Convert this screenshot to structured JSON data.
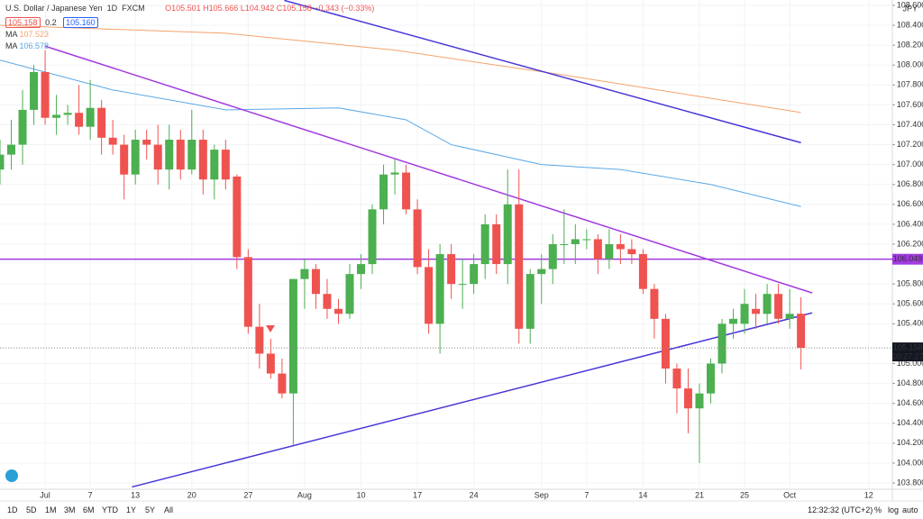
{
  "ui": {
    "symbol": "U.S. Dollar / Japanese Yen",
    "interval": "1D",
    "source": "FXCM",
    "ohlc_text": "O105.501 H105.666 L104.942 C105.158 −0.343 (−0.33%)",
    "bid": "105.158",
    "spread": "0.2",
    "ask": "105.160",
    "currency": "JPY",
    "countdown": "10:27:27",
    "ranges": [
      "1D",
      "5D",
      "1M",
      "3M",
      "6M",
      "YTD",
      "1Y",
      "5Y",
      "All"
    ],
    "clock": "12:32:32 (UTC+2)",
    "scale_buttons": [
      "%",
      "log",
      "auto"
    ]
  },
  "chart_data": {
    "type": "candlestick",
    "up_color": "#4caf50",
    "down_color": "#ef5350",
    "grid": true,
    "xlim": [
      0,
      79.1
    ],
    "ylim": [
      103.737,
      108.654
    ],
    "xticks": [
      {
        "value": 4,
        "label": "Jul"
      },
      {
        "value": 8,
        "label": "7"
      },
      {
        "value": 12,
        "label": "13"
      },
      {
        "value": 17,
        "label": "20"
      },
      {
        "value": 22,
        "label": "27"
      },
      {
        "value": 27,
        "label": "Aug"
      },
      {
        "value": 32,
        "label": "10"
      },
      {
        "value": 37,
        "label": "17"
      },
      {
        "value": 42,
        "label": "24"
      },
      {
        "value": 48,
        "label": "Sep"
      },
      {
        "value": 52,
        "label": "7"
      },
      {
        "value": 57,
        "label": "14"
      },
      {
        "value": 62,
        "label": "21"
      },
      {
        "value": 66,
        "label": "25"
      },
      {
        "value": 70,
        "label": "Oct"
      },
      {
        "value": 77,
        "label": "12"
      }
    ],
    "yticks": [
      {
        "value": 103.8,
        "label": "103.800"
      },
      {
        "value": 104.0,
        "label": "104.000"
      },
      {
        "value": 104.2,
        "label": "104.200"
      },
      {
        "value": 104.4,
        "label": "104.400"
      },
      {
        "value": 104.6,
        "label": "104.600"
      },
      {
        "value": 104.8,
        "label": "104.800"
      },
      {
        "value": 105.0,
        "label": "105.000"
      },
      {
        "value": 105.4,
        "label": "105.400"
      },
      {
        "value": 105.6,
        "label": "105.600"
      },
      {
        "value": 105.8,
        "label": "105.800"
      },
      {
        "value": 106.2,
        "label": "106.200"
      },
      {
        "value": 106.4,
        "label": "106.400"
      },
      {
        "value": 106.6,
        "label": "106.600"
      },
      {
        "value": 106.8,
        "label": "106.800"
      },
      {
        "value": 107.0,
        "label": "107.000"
      },
      {
        "value": 107.2,
        "label": "107.200"
      },
      {
        "value": 107.4,
        "label": "107.400"
      },
      {
        "value": 107.6,
        "label": "107.600"
      },
      {
        "value": 107.8,
        "label": "107.800"
      },
      {
        "value": 108.0,
        "label": "108.000"
      },
      {
        "value": 108.2,
        "label": "108.200"
      },
      {
        "value": 108.4,
        "label": "108.400"
      },
      {
        "value": 108.6,
        "label": "108.600"
      }
    ],
    "open": [
      106.95,
      107.1,
      107.2,
      107.55,
      107.93,
      107.47,
      107.5,
      107.52,
      107.38,
      107.57,
      107.27,
      107.2,
      106.9,
      107.25,
      107.2,
      106.95,
      107.25,
      106.95,
      107.25,
      106.85,
      107.15,
      106.88,
      106.07,
      105.37,
      105.1,
      104.9,
      104.7,
      105.85,
      105.95,
      105.7,
      105.55,
      105.5,
      105.9,
      106.0,
      106.55,
      106.9,
      106.92,
      106.55,
      105.97,
      105.4,
      106.1,
      105.8,
      105.8,
      106.0,
      106.4,
      106.0,
      106.6,
      105.35,
      105.9,
      105.95,
      106.2,
      106.2,
      106.25,
      106.25,
      106.05,
      106.2,
      106.15,
      106.1,
      105.75,
      105.45,
      104.95,
      104.75,
      104.55,
      104.7,
      105.0,
      105.4,
      105.4,
      105.55,
      105.5,
      105.7,
      105.45,
      105.501
    ],
    "high": [
      107.25,
      107.45,
      107.75,
      108.0,
      108.15,
      107.7,
      107.6,
      107.8,
      107.85,
      107.65,
      107.45,
      107.3,
      107.35,
      107.35,
      107.4,
      107.4,
      107.35,
      107.55,
      107.35,
      107.2,
      107.25,
      106.9,
      106.15,
      105.6,
      105.25,
      105.05,
      105.85,
      106.05,
      106.0,
      105.85,
      105.65,
      106.0,
      106.1,
      106.6,
      107.0,
      107.05,
      107.0,
      106.65,
      106.15,
      106.2,
      106.2,
      106.05,
      106.1,
      106.5,
      106.5,
      106.95,
      106.95,
      105.95,
      106.1,
      106.3,
      106.55,
      106.4,
      106.35,
      106.3,
      106.35,
      106.3,
      106.25,
      106.15,
      105.8,
      105.5,
      105.0,
      104.95,
      104.8,
      105.05,
      105.45,
      105.55,
      105.75,
      105.7,
      105.8,
      105.8,
      105.75,
      105.666
    ],
    "low": [
      106.8,
      106.95,
      107.0,
      107.4,
      107.4,
      107.3,
      107.4,
      107.3,
      107.25,
      107.1,
      107.1,
      106.65,
      106.8,
      107.05,
      106.8,
      106.75,
      106.85,
      106.9,
      106.7,
      106.65,
      106.75,
      105.95,
      105.3,
      104.95,
      104.85,
      104.65,
      104.18,
      105.55,
      105.55,
      105.45,
      105.4,
      105.45,
      105.75,
      105.9,
      106.4,
      106.7,
      106.5,
      105.9,
      105.3,
      105.1,
      105.65,
      105.55,
      105.7,
      105.85,
      105.9,
      105.8,
      105.2,
      105.2,
      105.6,
      105.8,
      106.0,
      106.0,
      106.15,
      105.9,
      105.95,
      106.0,
      106.0,
      105.7,
      105.25,
      104.8,
      104.5,
      104.3,
      104.0,
      104.6,
      104.9,
      105.25,
      105.3,
      105.35,
      105.4,
      105.4,
      105.35,
      104.942
    ],
    "close": [
      107.1,
      107.2,
      107.55,
      107.93,
      107.47,
      107.5,
      107.52,
      107.38,
      107.57,
      107.27,
      107.2,
      106.9,
      107.25,
      107.2,
      106.95,
      107.25,
      106.95,
      107.25,
      106.85,
      107.15,
      106.85,
      106.07,
      105.37,
      105.1,
      104.9,
      104.7,
      105.85,
      105.95,
      105.7,
      105.55,
      105.5,
      105.9,
      106.0,
      106.55,
      106.9,
      106.92,
      106.55,
      105.97,
      105.4,
      106.1,
      105.8,
      105.8,
      106.0,
      106.4,
      106.0,
      106.6,
      105.35,
      105.9,
      105.95,
      106.2,
      106.2,
      106.25,
      106.25,
      106.05,
      106.2,
      106.15,
      106.1,
      105.75,
      105.45,
      104.95,
      104.75,
      104.55,
      104.7,
      105.0,
      105.4,
      105.45,
      105.6,
      105.5,
      105.7,
      105.45,
      105.5,
      105.158
    ],
    "series": [
      {
        "name": "MA",
        "color": "#f5a26b",
        "x": [
          0,
          20,
          35,
          50,
          60,
          71
        ],
        "values": [
          108.4,
          108.32,
          108.15,
          107.9,
          107.72,
          107.523
        ]
      },
      {
        "name": "MA",
        "color": "#5aa8e6",
        "x": [
          0,
          10,
          20,
          30,
          36,
          40,
          48,
          55,
          63,
          71
        ],
        "values": [
          108.05,
          107.75,
          107.55,
          107.57,
          107.45,
          107.2,
          107.0,
          106.95,
          106.8,
          106.578
        ]
      }
    ],
    "trend_lines": [
      {
        "color": "#a23be0",
        "x": [
          4,
          72
        ],
        "values": [
          108.19,
          105.71
        ]
      },
      {
        "color": "#4535d8",
        "x": [
          25.2,
          71
        ],
        "values": [
          108.65,
          107.22
        ]
      },
      {
        "color": "#4535d8",
        "x": [
          11.7,
          72
        ],
        "values": [
          103.76,
          105.51
        ]
      }
    ],
    "horizontal_line": {
      "color": "#a23be0",
      "value": 106.049
    }
  }
}
